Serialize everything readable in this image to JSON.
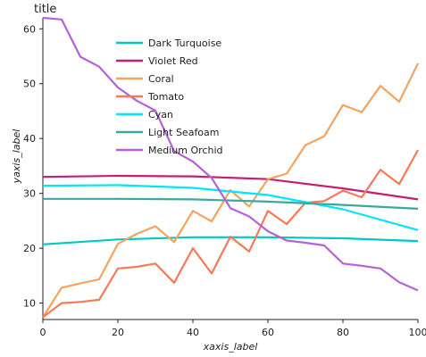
{
  "chart_data": {
    "type": "line",
    "title": "title",
    "xlabel": "xaxis_label",
    "ylabel": "yaxis_label",
    "xlim": [
      0,
      100
    ],
    "ylim": [
      7,
      62
    ],
    "x_ticks": [
      0,
      20,
      40,
      60,
      80,
      100
    ],
    "y_ticks": [
      10,
      20,
      30,
      40,
      50,
      60
    ],
    "grid": false,
    "legend_placement": "top-left",
    "series": [
      {
        "name": "Dark Turquoise",
        "color": "#00c8c8",
        "x": [
          0,
          20,
          40,
          60,
          80,
          100
        ],
        "values": [
          20.7,
          21.6,
          22.0,
          22.0,
          21.8,
          21.3
        ]
      },
      {
        "name": "Violet Red",
        "color": "#c41f70",
        "x": [
          0,
          20,
          40,
          60,
          80,
          100
        ],
        "values": [
          33.0,
          33.2,
          33.1,
          32.6,
          30.9,
          28.9
        ]
      },
      {
        "name": "Coral",
        "color": "#f4a460",
        "x": [
          0,
          5,
          10,
          15,
          20,
          25,
          30,
          35,
          40,
          45,
          50,
          55,
          60,
          65,
          70,
          75,
          80,
          85,
          90,
          95,
          100
        ],
        "values": [
          7.4,
          12.8,
          13.6,
          14.3,
          20.8,
          22.6,
          24.0,
          21.1,
          26.8,
          24.9,
          30.6,
          27.6,
          32.6,
          33.6,
          38.8,
          40.4,
          46.1,
          44.8,
          49.6,
          46.7,
          53.7
        ]
      },
      {
        "name": "Tomato",
        "color": "#f47a5a",
        "x": [
          0,
          5,
          10,
          15,
          20,
          25,
          30,
          35,
          40,
          45,
          50,
          55,
          60,
          65,
          70,
          75,
          80,
          85,
          90,
          95,
          100
        ],
        "values": [
          7.4,
          10.0,
          10.2,
          10.6,
          16.3,
          16.6,
          17.2,
          13.7,
          20.0,
          15.4,
          22.1,
          19.4,
          26.8,
          24.4,
          28.3,
          28.6,
          30.5,
          29.3,
          34.3,
          31.7,
          37.9
        ]
      },
      {
        "name": "Cyan",
        "color": "#00e5ff",
        "x": [
          0,
          20,
          40,
          60,
          80,
          100
        ],
        "values": [
          31.4,
          31.5,
          31.0,
          29.7,
          27.1,
          23.3
        ]
      },
      {
        "name": "Light Seafoam",
        "color": "#3aa8a0",
        "x": [
          0,
          20,
          40,
          60,
          80,
          100
        ],
        "values": [
          29.0,
          29.0,
          28.9,
          28.5,
          27.9,
          27.2
        ]
      },
      {
        "name": "Medium Orchid",
        "color": "#b562d6",
        "x": [
          0,
          5,
          10,
          15,
          20,
          25,
          30,
          35,
          40,
          45,
          50,
          55,
          60,
          65,
          70,
          75,
          80,
          85,
          90,
          95,
          100
        ],
        "values": [
          62.0,
          61.7,
          54.9,
          53.1,
          49.3,
          46.9,
          45.1,
          37.7,
          35.8,
          32.8,
          27.3,
          25.8,
          23.1,
          21.4,
          21.0,
          20.5,
          17.2,
          16.8,
          16.3,
          13.8,
          12.3
        ]
      }
    ]
  }
}
